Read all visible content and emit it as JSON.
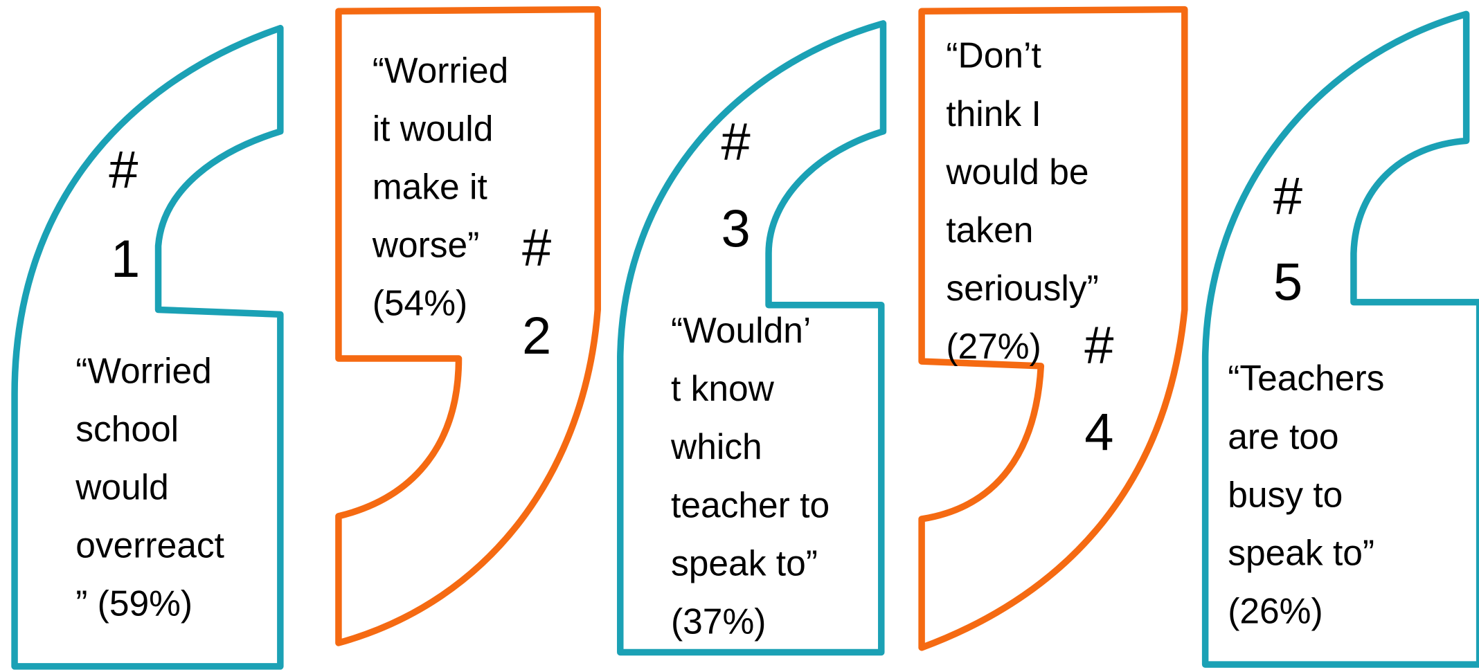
{
  "items": [
    {
      "hash": "#",
      "rank": "1",
      "lines": [
        "“Worried",
        "school",
        "would",
        "overreact",
        "” (59%)"
      ]
    },
    {
      "hash": "#",
      "rank": "2",
      "lines": [
        "“Worried",
        "it would",
        "make it",
        "worse”",
        "(54%)"
      ]
    },
    {
      "hash": "#",
      "rank": "3",
      "lines": [
        "“Wouldn’",
        "t know",
        "which",
        "teacher to",
        "speak to”",
        "(37%)"
      ]
    },
    {
      "hash": "#",
      "rank": "4",
      "lines": [
        "“Don’t",
        "think I",
        "would be",
        "taken",
        "seriously”",
        "(27%)"
      ]
    },
    {
      "hash": "#",
      "rank": "5",
      "lines": [
        "“Teachers",
        "are too",
        "busy to",
        "speak to”",
        "(26%)"
      ]
    }
  ]
}
